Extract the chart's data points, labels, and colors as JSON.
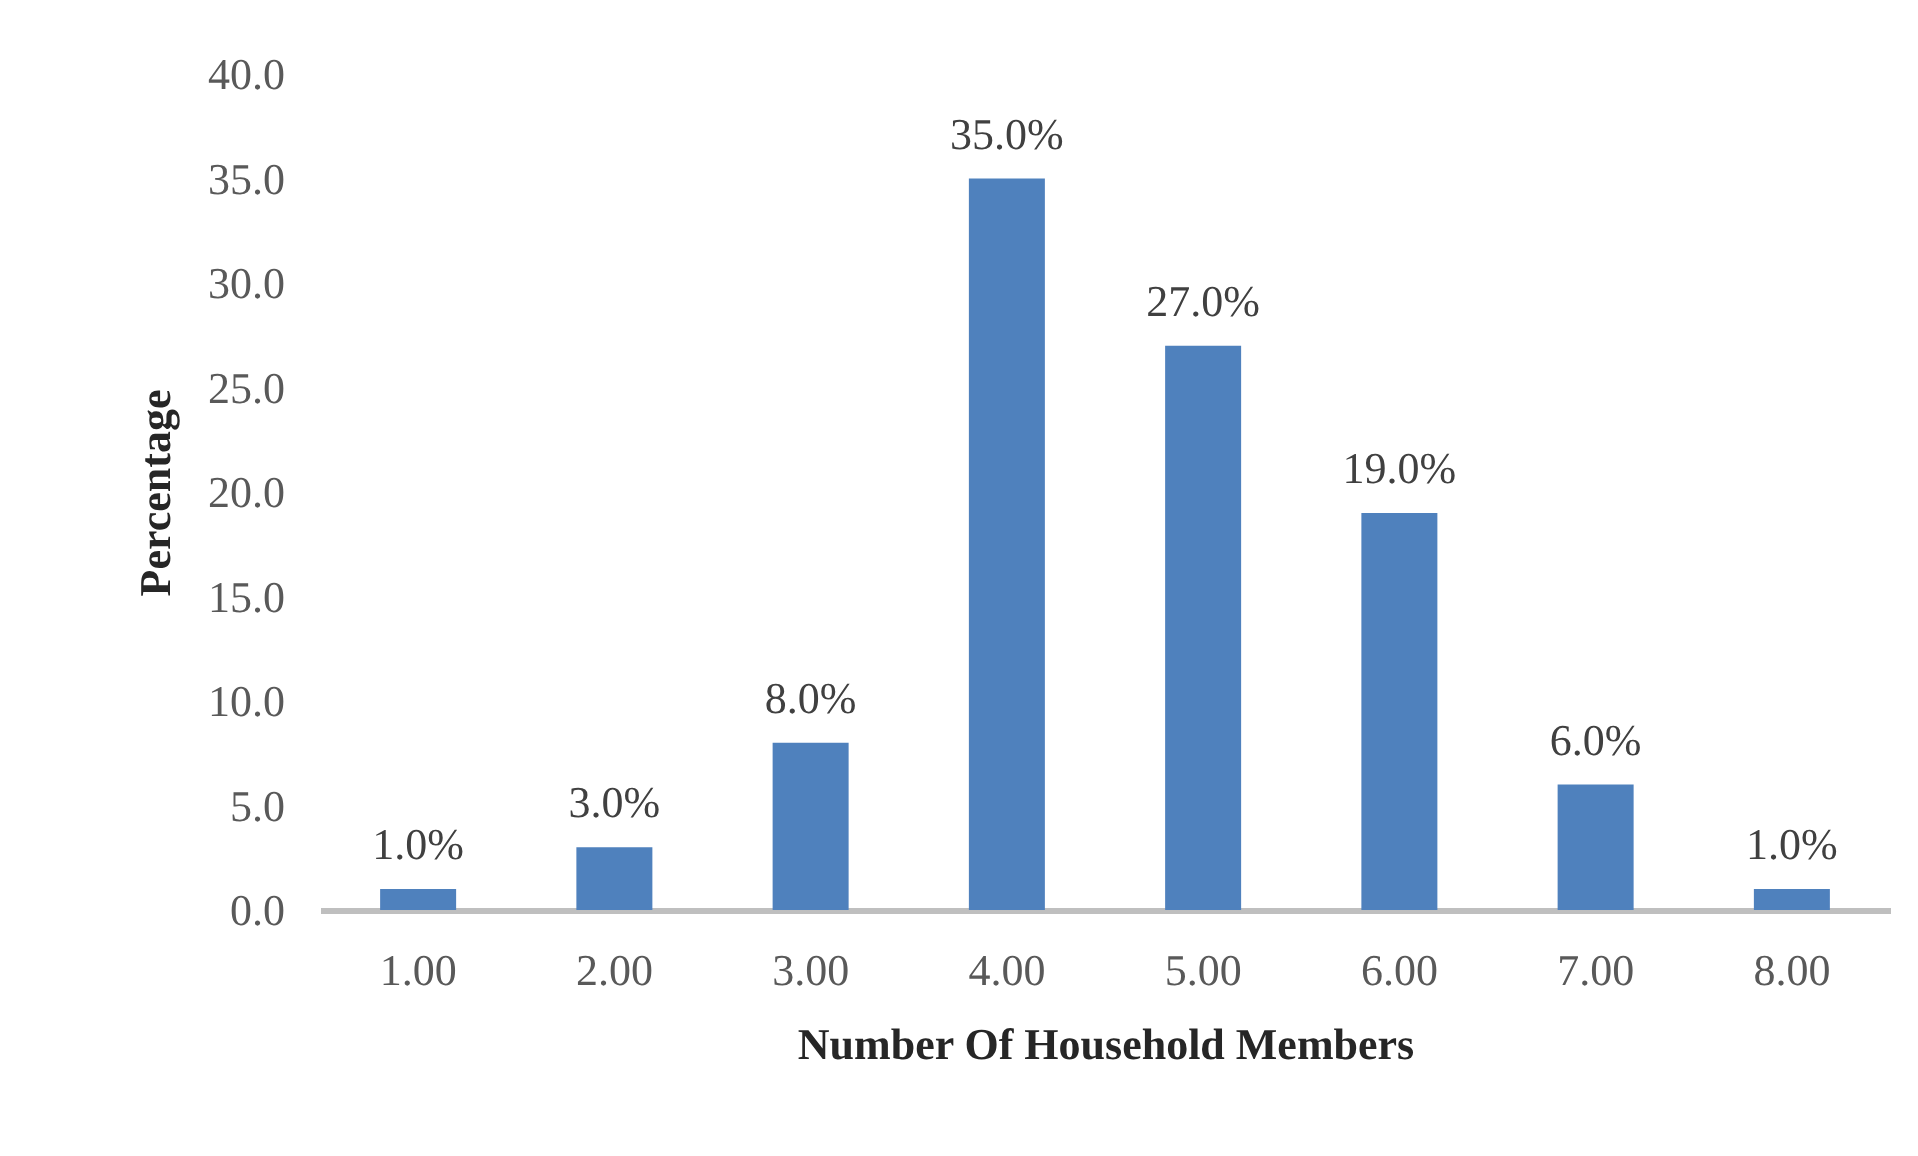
{
  "chart_data": {
    "type": "bar",
    "xlabel": "Number Of Household Members",
    "ylabel": "Percentage",
    "categories": [
      "1.00",
      "2.00",
      "3.00",
      "4.00",
      "5.00",
      "6.00",
      "7.00",
      "8.00"
    ],
    "values": [
      1,
      3,
      8,
      35,
      27,
      19,
      6,
      1
    ],
    "color": "#4f81bd",
    "value_labels": [
      "1.0%",
      "3.0%",
      "8.0%",
      "35.0%",
      "27.0%",
      "19.0%",
      "6.0%",
      "1.0%"
    ],
    "ylim": [
      0,
      40
    ],
    "yticks": [
      {
        "value": 0,
        "label": "0.0"
      },
      {
        "value": 5,
        "label": "5.0"
      },
      {
        "value": 10,
        "label": "10.0"
      },
      {
        "value": 15,
        "label": "15.0"
      },
      {
        "value": 20,
        "label": "20.0"
      },
      {
        "value": 25,
        "label": "25.0"
      },
      {
        "value": 30,
        "label": "30.0"
      },
      {
        "value": 35,
        "label": "35.0"
      },
      {
        "value": 40,
        "label": "40.0"
      }
    ]
  }
}
